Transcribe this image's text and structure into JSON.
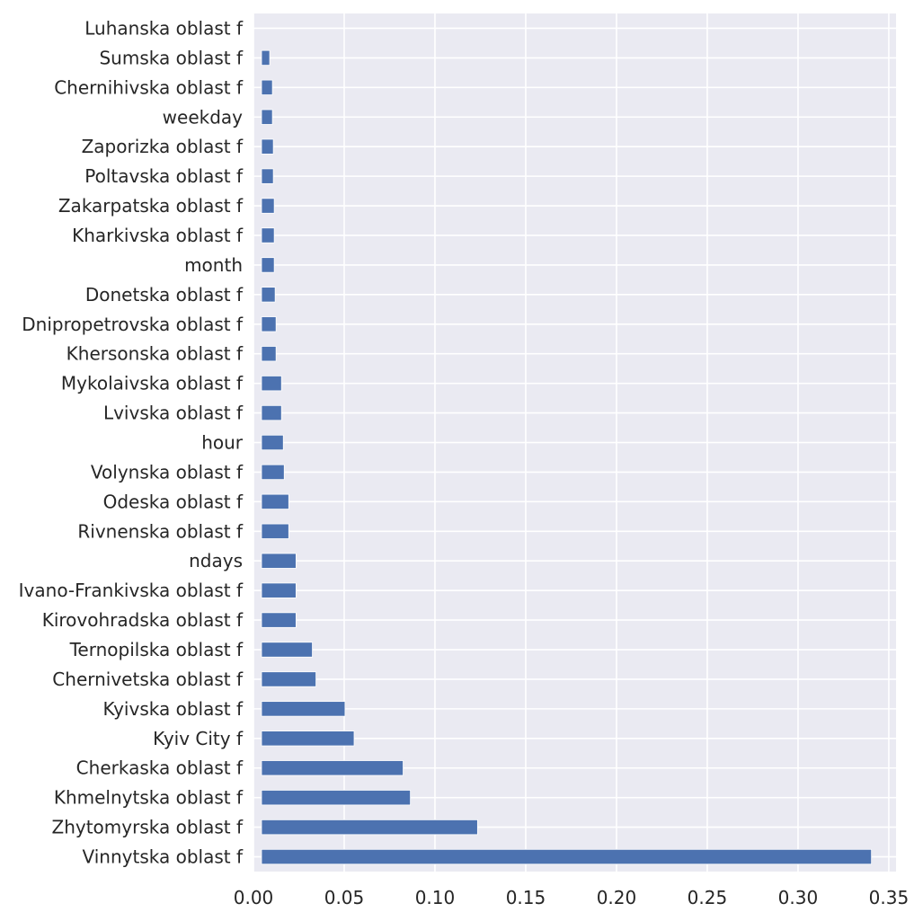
{
  "chart_data": {
    "type": "bar",
    "orientation": "horizontal",
    "title": "",
    "xlabel": "",
    "ylabel": "",
    "categories": [
      "Vinnytska oblast f",
      "Zhytomyrska oblast f",
      "Khmelnytska oblast f",
      "Cherkaska oblast f",
      "Kyiv City f",
      "Kyivska oblast f",
      "Chernivetska oblast f",
      "Ternopilska oblast f",
      "Kirovohradska oblast f",
      "Ivano-Frankivska oblast f",
      "ndays",
      "Rivnenska oblast f",
      "Odeska oblast f",
      "Volynska oblast f",
      "hour",
      "Lvivska oblast f",
      "Mykolaivska oblast f",
      "Khersonska oblast f",
      "Dnipropetrovska oblast f",
      "Donetska oblast f",
      "month",
      "Kharkivska oblast f",
      "Zakarpatska oblast f",
      "Poltavska oblast f",
      "Zaporizka oblast f",
      "weekday",
      "Chernihivska oblast f",
      "Sumska oblast f",
      "Luhanska oblast f"
    ],
    "values": [
      0.336,
      0.119,
      0.082,
      0.078,
      0.051,
      0.046,
      0.03,
      0.028,
      0.019,
      0.019,
      0.019,
      0.015,
      0.015,
      0.0125,
      0.012,
      0.011,
      0.011,
      0.008,
      0.008,
      0.0075,
      0.007,
      0.007,
      0.007,
      0.0065,
      0.0065,
      0.006,
      0.006,
      0.0045,
      0.0
    ],
    "xlim": [
      0.0,
      0.354
    ],
    "xticks": [
      0.0,
      0.05,
      0.1,
      0.15,
      0.2,
      0.25,
      0.3,
      0.35
    ],
    "xtick_labels": [
      "0.00",
      "0.05",
      "0.10",
      "0.15",
      "0.20",
      "0.25",
      "0.30",
      "0.35"
    ],
    "grid": true,
    "colors": {
      "bar": "#4c72b0",
      "background": "#eaeaf2",
      "grid": "#ffffff",
      "text": "#262626"
    }
  }
}
